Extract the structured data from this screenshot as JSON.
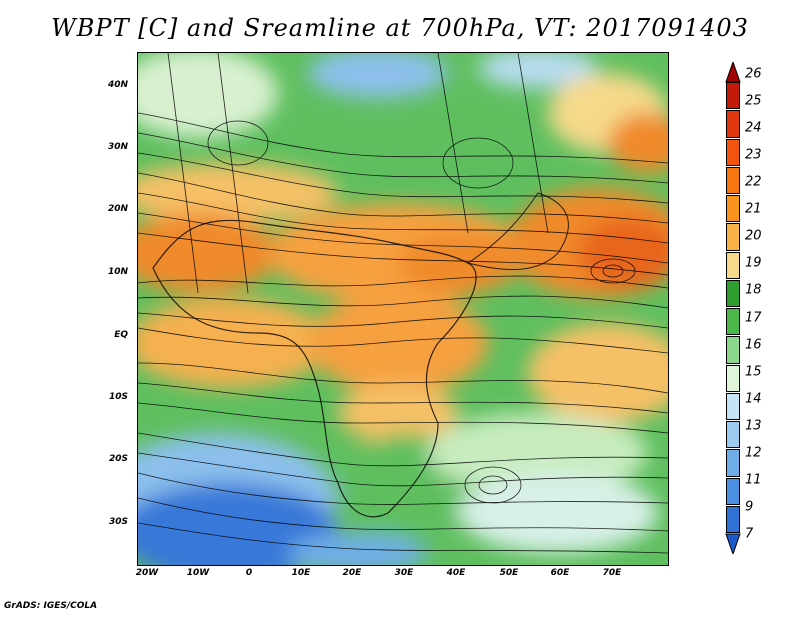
{
  "title": "WBPT [C] and Sreamline at 700hPa, VT: 2017091403",
  "credit": "GrADS: IGES/COLA",
  "map": {
    "lat_labels": [
      "40N",
      "30N",
      "20N",
      "10N",
      "EQ",
      "10S",
      "20S",
      "30S"
    ],
    "lon_labels": [
      "20W",
      "10W",
      "0",
      "10E",
      "20E",
      "30E",
      "40E",
      "50E",
      "60E",
      "70E"
    ]
  },
  "colorbar": {
    "labels": [
      "26",
      "25",
      "24",
      "23",
      "22",
      "21",
      "20",
      "19",
      "18",
      "17",
      "16",
      "15",
      "14",
      "13",
      "12",
      "11",
      "9",
      "7"
    ],
    "colors": [
      "#a00000",
      "#c31a0a",
      "#e2360f",
      "#f2540f",
      "#f8760f",
      "#f9951d",
      "#f8b246",
      "#f6d98a",
      "#2e9e2e",
      "#4cb84c",
      "#8dd88d",
      "#dff5d8",
      "#c4e4f5",
      "#9ccaf0",
      "#6faee8",
      "#4b90e0",
      "#2f72d4",
      "#1b5ac8"
    ]
  },
  "palette": {
    "hot": "#f08a2a",
    "warm": "#f6c066",
    "green": "#5fbf5f",
    "dark_green": "#2e9e2e",
    "light": "#d8f0d0",
    "cool_blue": "#8cc0ec",
    "deep_blue": "#3878d8"
  }
}
